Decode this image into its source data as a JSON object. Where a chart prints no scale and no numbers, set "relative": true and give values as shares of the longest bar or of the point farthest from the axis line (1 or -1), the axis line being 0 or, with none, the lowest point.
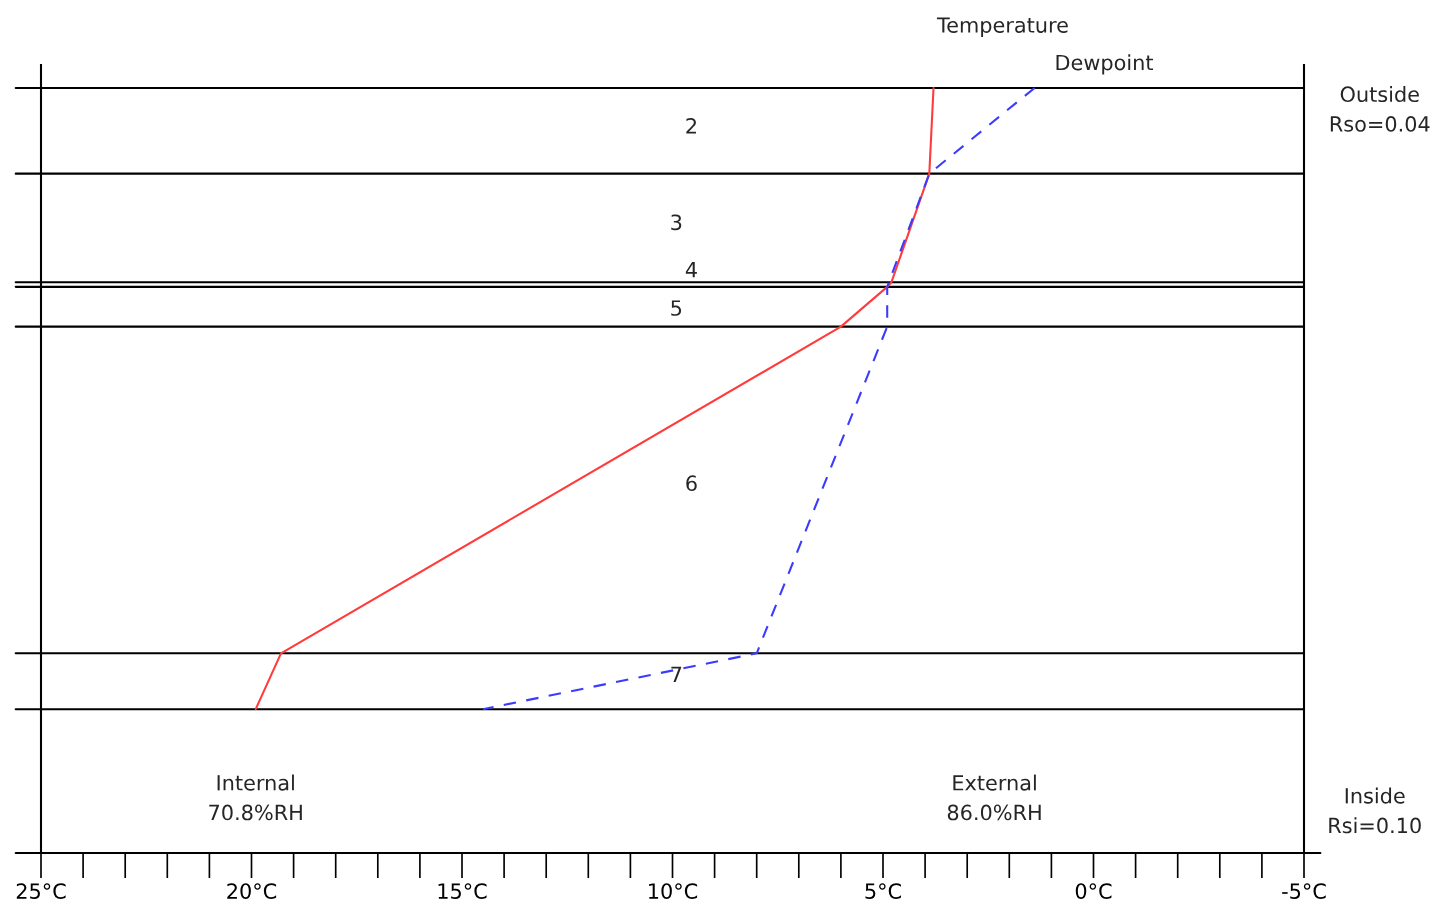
{
  "chart_data": {
    "type": "line",
    "relative": true,
    "legend": false,
    "grid": false,
    "tick_labels": "x",
    "xlim": [
      25,
      -5
    ],
    "xticks": [
      {
        "value": 25,
        "label": "25°C"
      },
      {
        "value": 20,
        "label": "20°C"
      },
      {
        "value": 15,
        "label": "15°C"
      },
      {
        "value": 10,
        "label": "10°C"
      },
      {
        "value": 5,
        "label": "5°C"
      },
      {
        "value": 0,
        "label": "0°C"
      },
      {
        "value": -5,
        "label": "-5°C"
      }
    ],
    "series": [
      {
        "name": "Temperature",
        "color": "#ff3b3b",
        "line_style": "solid",
        "x": [
          3.8,
          3.9,
          4.8,
          4.9,
          6.0,
          19.3,
          19.9
        ],
        "values": [
          1.0,
          0.888,
          0.746,
          0.74,
          0.688,
          0.261,
          0.188
        ]
      },
      {
        "name": "Dewpoint",
        "color": "#3b3bff",
        "line_style": "dashed",
        "x": [
          1.4,
          3.9,
          4.9,
          4.9,
          8.0,
          14.5
        ],
        "values": [
          1.0,
          0.888,
          0.74,
          0.688,
          0.261,
          0.188
        ]
      }
    ],
    "ref_lines": [
      {
        "axis": "y",
        "value": 1.0,
        "color": "#000000"
      },
      {
        "axis": "y",
        "value": 0.888,
        "color": "#000000"
      },
      {
        "axis": "y",
        "value": 0.746,
        "color": "#000000"
      },
      {
        "axis": "y",
        "value": 0.74,
        "color": "#000000"
      },
      {
        "axis": "y",
        "value": 0.688,
        "color": "#000000"
      },
      {
        "axis": "y",
        "value": 0.261,
        "color": "#000000"
      },
      {
        "axis": "y",
        "value": 0.188,
        "color": "#000000"
      }
    ],
    "annotations": [
      "2",
      "3",
      "4",
      "5",
      "6",
      "7",
      "Internal\n70.8%RH",
      "External\n86.0%RH",
      "Outside\nRso=0.04",
      "Inside\nRsi=0.10"
    ]
  }
}
